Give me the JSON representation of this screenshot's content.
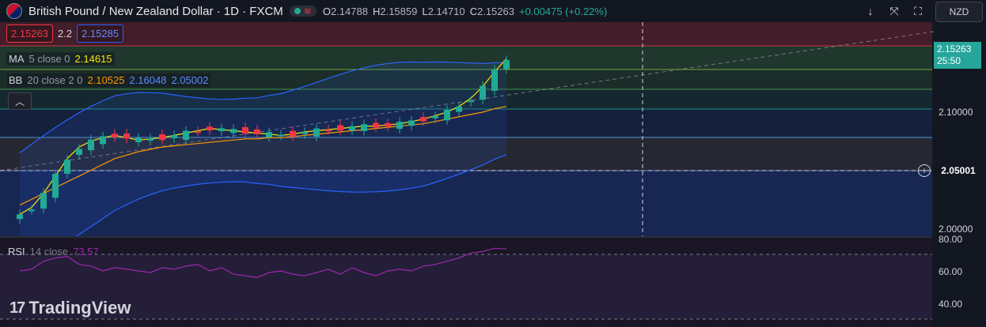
{
  "header": {
    "symbol_title": "British Pound / New Zealand Dollar · 1D · FXCM",
    "ohlc": {
      "open_key": "O",
      "open": "2.14788",
      "high_key": "H",
      "high": "2.15859",
      "low_key": "L",
      "low": "2.14710",
      "close_key": "C",
      "close": "2.15263",
      "change": "+0.00475 (+0.22%)"
    },
    "sell_price": "2.15263",
    "spread": "2.2",
    "buy_price": "2.15285",
    "currency": "NZD"
  },
  "indicators": {
    "ma": {
      "name": "MA",
      "params": "5 close 0",
      "value": "2.14615",
      "color": "#f7e600"
    },
    "bb": {
      "name": "BB",
      "params": "20 close 2 0",
      "basis": "2.10525",
      "upper": "2.16048",
      "lower": "2.05002",
      "basis_color": "#ff9800",
      "band_color": "#2962ff"
    },
    "rsi": {
      "name": "RSI",
      "params": "14 close",
      "value": "73.57",
      "color": "#9c27b0"
    }
  },
  "price_axis": {
    "labels": [
      "2.10000",
      "2.00000"
    ],
    "current_price": "2.15263",
    "countdown": "25:50",
    "crosshair_price": "2.05001"
  },
  "rsi_axis": {
    "labels": [
      "80.00",
      "60.00",
      "40.00"
    ]
  },
  "brand": {
    "name": "TradingView",
    "mark": "17"
  },
  "colors": {
    "up": "#22ab94",
    "down": "#f23645",
    "ma": "#f7e600",
    "bb_basis": "#ff9800",
    "bb_band": "#2962ff",
    "rsi": "#9c27b0"
  },
  "chart_data": {
    "type": "candlestick",
    "series": [
      {
        "name": "MA",
        "values": [
          2.012,
          2.018,
          2.03,
          2.045,
          2.06,
          2.07,
          2.075,
          2.078,
          2.08,
          2.078,
          2.076,
          2.077,
          2.078,
          2.08,
          2.082,
          2.084,
          2.086,
          2.085,
          2.084,
          2.083,
          2.082,
          2.081,
          2.08,
          2.081,
          2.083,
          2.084,
          2.085,
          2.086,
          2.087,
          2.088,
          2.088,
          2.089,
          2.09,
          2.092,
          2.094,
          2.097,
          2.1,
          2.105,
          2.112,
          2.122,
          2.135,
          2.146
        ]
      },
      {
        "name": "BB",
        "values": [
          2.02,
          2.025,
          2.03,
          2.035,
          2.04,
          2.045,
          2.05,
          2.055,
          2.06,
          2.063,
          2.066,
          2.068,
          2.07,
          2.071,
          2.072,
          2.073,
          2.074,
          2.075,
          2.076,
          2.077,
          2.077,
          2.078,
          2.078,
          2.079,
          2.08,
          2.081,
          2.082,
          2.083,
          2.084,
          2.085,
          2.086,
          2.087,
          2.088,
          2.089,
          2.09,
          2.092,
          2.094,
          2.096,
          2.098,
          2.1,
          2.103,
          2.105
        ]
      }
    ],
    "rsi": [
      60,
      61,
      66,
      68,
      69,
      64,
      63,
      60,
      62,
      61,
      60,
      59,
      62,
      61,
      63,
      64,
      60,
      62,
      58,
      57,
      56,
      59,
      60,
      58,
      57,
      59,
      61,
      58,
      62,
      59,
      57,
      60,
      61,
      60,
      63,
      64,
      66,
      68,
      71,
      72,
      74,
      73.57
    ]
  }
}
